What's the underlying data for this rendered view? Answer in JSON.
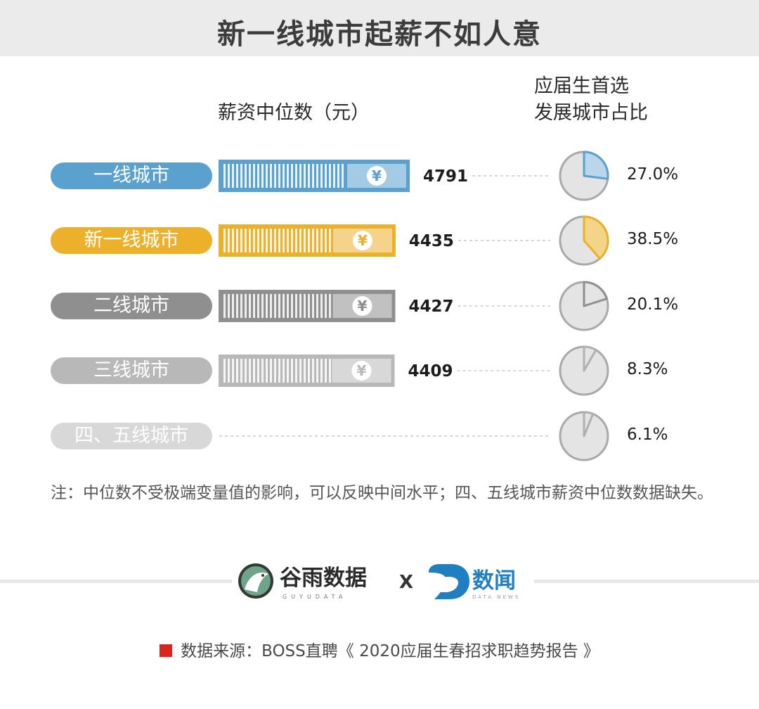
{
  "header": {
    "title": "新一线城市起薪不如人意"
  },
  "chart_data": {
    "type": "bar",
    "categories": [
      "一线城市",
      "新一线城市",
      "二线城市",
      "三线城市",
      "四、五线城市"
    ],
    "series": [
      {
        "name": "薪资中位数（元）",
        "values": [
          4791,
          4435,
          4427,
          4409,
          null
        ],
        "labels": [
          "4791",
          "4435",
          "4427",
          "4409",
          ""
        ]
      },
      {
        "name": "应届生首选发展城市占比",
        "values": [
          27.0,
          38.5,
          20.1,
          8.3,
          6.1
        ],
        "labels": [
          "27.0%",
          "38.5%",
          "20.1%",
          "8.3%",
          "6.1%"
        ]
      }
    ],
    "columns": {
      "salary_header": "薪资中位数（元）",
      "share_header_line1": "应届生首选",
      "share_header_line2": "发展城市占比"
    },
    "colors": [
      "#5aa1cf",
      "#edb02a",
      "#8f8f8f",
      "#b8b8b8",
      "#d8d8d8"
    ],
    "currency_icon": "yen-icon"
  },
  "note": "注：中位数不受极端变量值的影响，可以反映中间水平；四、五线城市薪资中位数数据缺失。",
  "logos": {
    "left_name": "谷雨数据",
    "left_sub": "GUYUDATA",
    "times": "X",
    "right_name": "数闻",
    "right_sub": "DATA NEWS"
  },
  "source": "数据来源：BOSS直聘《 2020应届生春招求职趋势报告 》"
}
